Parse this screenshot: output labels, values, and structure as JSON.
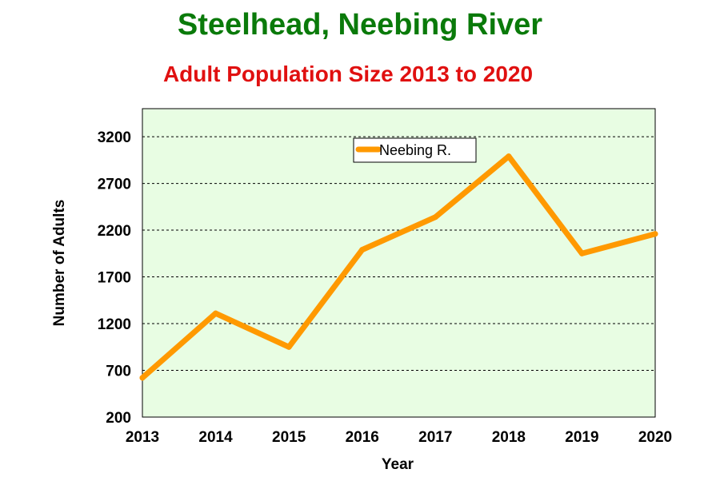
{
  "chart_data": {
    "type": "line",
    "title": "Steelhead, Neebing River",
    "subtitle": "Adult Population Size 2013 to 2020",
    "xlabel": "Year",
    "ylabel": "Number of Adults",
    "categories": [
      "2013",
      "2014",
      "2015",
      "2016",
      "2017",
      "2018",
      "2019",
      "2020"
    ],
    "series": [
      {
        "name": "Neebing R.",
        "values": [
          620,
          1310,
          950,
          1990,
          2340,
          2990,
          1950,
          2160
        ]
      }
    ],
    "ylim": [
      200,
      3500
    ],
    "yticks": [
      200,
      700,
      1200,
      1700,
      2200,
      2700,
      3200
    ],
    "grid": true,
    "legend_position": "top-center",
    "colors": {
      "title": "#0a7a0a",
      "subtitle": "#e01010",
      "line": "#ff9900",
      "plot_background": "#e8fde3"
    }
  }
}
